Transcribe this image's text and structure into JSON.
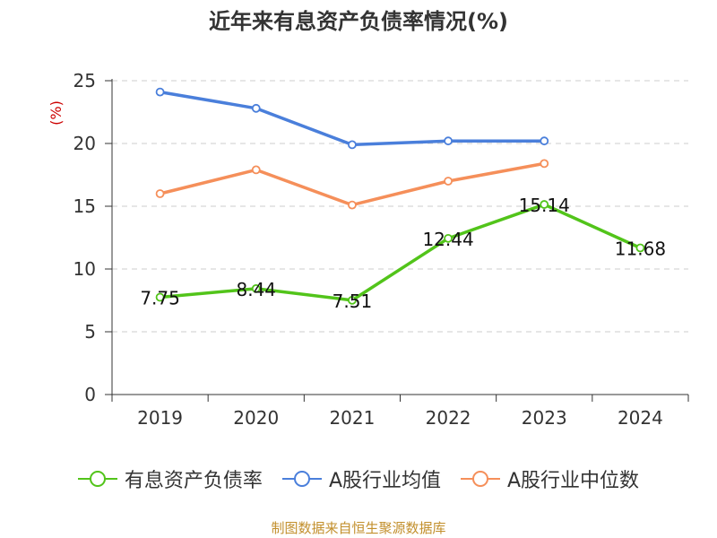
{
  "title": "近年来有息资产负债率情况(%)",
  "source": "制图数据来自恒生聚源数据库",
  "chart_data": {
    "type": "line",
    "title": "近年来有息资产负债率情况(%)",
    "ylabel": "(%)",
    "ylim": [
      0,
      25
    ],
    "yticks": [
      0,
      5,
      10,
      15,
      20,
      25
    ],
    "grid": true,
    "legend_position": "bottom",
    "categories": [
      "2019",
      "2020",
      "2021",
      "2022",
      "2023",
      "2024"
    ],
    "series": [
      {
        "name": "有息资产负债率",
        "color": "#52c41a",
        "values": [
          7.75,
          8.44,
          7.51,
          12.44,
          15.14,
          11.68
        ],
        "labels": [
          "7.75",
          "8.44",
          "7.51",
          "12.44",
          "15.14",
          "11.68"
        ],
        "show_labels": true
      },
      {
        "name": "A股行业均值",
        "color": "#4a7fdb",
        "values": [
          24.1,
          22.8,
          19.9,
          20.2,
          20.2,
          null
        ],
        "show_labels": false
      },
      {
        "name": "A股行业中位数",
        "color": "#f58f5a",
        "values": [
          16.0,
          17.9,
          15.1,
          17.0,
          18.4,
          null
        ],
        "show_labels": false
      }
    ]
  }
}
